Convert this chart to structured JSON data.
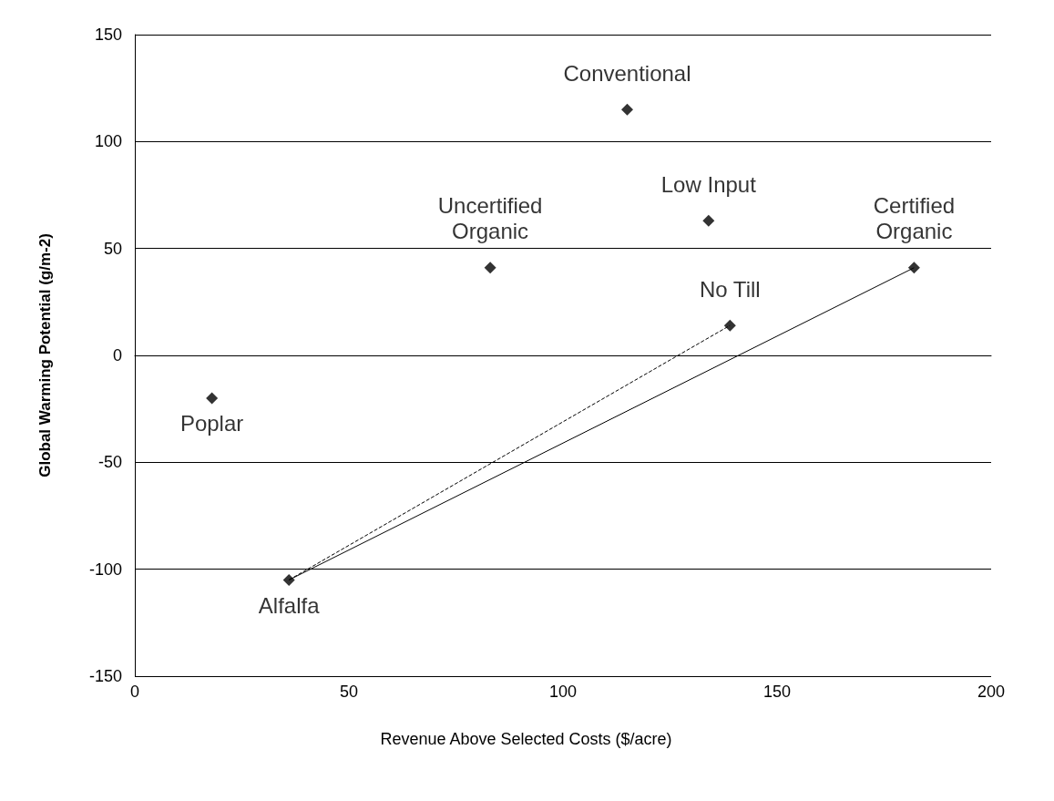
{
  "chart_data": {
    "type": "scatter",
    "xlabel": "Revenue Above Selected Costs ($/acre)",
    "ylabel": "Global Warming Potential (g/m-2)",
    "xlim": [
      0,
      200
    ],
    "xticks": [
      0,
      50,
      100,
      150,
      200
    ],
    "ylim": [
      -150,
      150
    ],
    "yticks": [
      -150,
      -100,
      -50,
      0,
      50,
      100,
      150
    ],
    "grid": "y",
    "marker": "diamond",
    "series": [
      {
        "color": "#000000",
        "x": [
          18,
          36,
          83,
          115,
          134,
          139,
          182
        ],
        "values": [
          -20,
          -105,
          41,
          115,
          63,
          14,
          41
        ]
      },
      {
        "type": "line",
        "color": "#000000",
        "line_style": "dashed",
        "marker": "none",
        "x": [
          36,
          139
        ],
        "values": [
          -105,
          14
        ]
      },
      {
        "type": "line",
        "color": "#000000",
        "line_style": "solid",
        "marker": "none",
        "x": [
          36,
          182
        ],
        "values": [
          -105,
          41
        ]
      }
    ],
    "annotations": [
      {
        "text": "Poplar",
        "x": 18,
        "y": -20
      },
      {
        "text": "Alfalfa",
        "x": 36,
        "y": -105
      },
      {
        "text": "Uncertified\nOrganic",
        "x": 83,
        "y": 41
      },
      {
        "text": "Conventional",
        "x": 115,
        "y": 115
      },
      {
        "text": "Low Input",
        "x": 134,
        "y": 63
      },
      {
        "text": "No Till",
        "x": 139,
        "y": 14
      },
      {
        "text": "Certified\nOrganic",
        "x": 182,
        "y": 41
      }
    ]
  }
}
